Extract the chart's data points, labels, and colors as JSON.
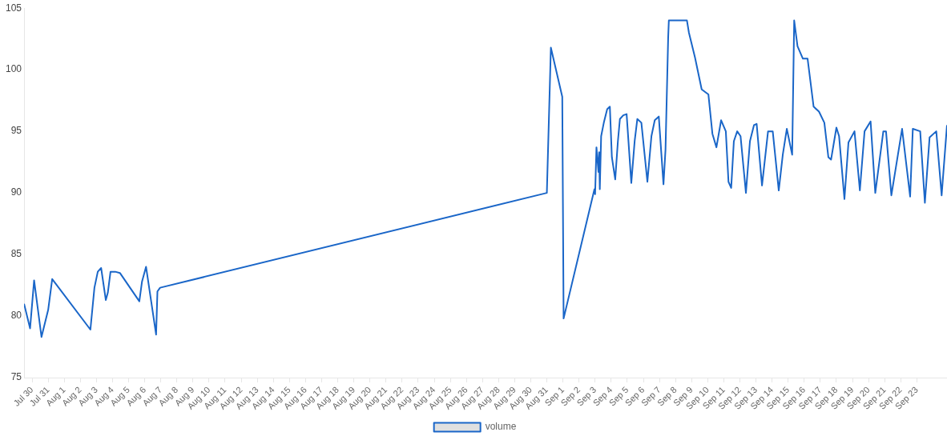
{
  "chart_data": {
    "type": "line",
    "legend": "bottom",
    "grid": false,
    "marker": "none",
    "line_style": "solid",
    "xlim": [
      "--07-29T12:00",
      "--09-24T21:00"
    ],
    "ylim": [
      75,
      105
    ],
    "yticks": [
      75,
      80,
      85,
      90,
      95,
      100,
      105
    ],
    "xticks": [
      {
        "value": "--07-30",
        "label": "Jul 30"
      },
      {
        "value": "--07-31",
        "label": "Jul 31"
      },
      {
        "value": "--08-01",
        "label": "Aug 1"
      },
      {
        "value": "--08-02",
        "label": "Aug 2"
      },
      {
        "value": "--08-03",
        "label": "Aug 3"
      },
      {
        "value": "--08-04",
        "label": "Aug 4"
      },
      {
        "value": "--08-05",
        "label": "Aug 5"
      },
      {
        "value": "--08-06",
        "label": "Aug 6"
      },
      {
        "value": "--08-07",
        "label": "Aug 7"
      },
      {
        "value": "--08-08",
        "label": "Aug 8"
      },
      {
        "value": "--08-09",
        "label": "Aug 9"
      },
      {
        "value": "--08-10",
        "label": "Aug 10"
      },
      {
        "value": "--08-11",
        "label": "Aug 11"
      },
      {
        "value": "--08-12",
        "label": "Aug 12"
      },
      {
        "value": "--08-13",
        "label": "Aug 13"
      },
      {
        "value": "--08-14",
        "label": "Aug 14"
      },
      {
        "value": "--08-15",
        "label": "Aug 15"
      },
      {
        "value": "--08-16",
        "label": "Aug 16"
      },
      {
        "value": "--08-17",
        "label": "Aug 17"
      },
      {
        "value": "--08-18",
        "label": "Aug 18"
      },
      {
        "value": "--08-19",
        "label": "Aug 19"
      },
      {
        "value": "--08-20",
        "label": "Aug 20"
      },
      {
        "value": "--08-21",
        "label": "Aug 21"
      },
      {
        "value": "--08-22",
        "label": "Aug 22"
      },
      {
        "value": "--08-23",
        "label": "Aug 23"
      },
      {
        "value": "--08-24",
        "label": "Aug 24"
      },
      {
        "value": "--08-25",
        "label": "Aug 25"
      },
      {
        "value": "--08-26",
        "label": "Aug 26"
      },
      {
        "value": "--08-27",
        "label": "Aug 27"
      },
      {
        "value": "--08-28",
        "label": "Aug 28"
      },
      {
        "value": "--08-29",
        "label": "Aug 29"
      },
      {
        "value": "--08-30",
        "label": "Aug 30"
      },
      {
        "value": "--08-31",
        "label": "Aug 31"
      },
      {
        "value": "--09-01",
        "label": "Sep 1"
      },
      {
        "value": "--09-02",
        "label": "Sep 2"
      },
      {
        "value": "--09-03",
        "label": "Sep 3"
      },
      {
        "value": "--09-04",
        "label": "Sep 4"
      },
      {
        "value": "--09-05",
        "label": "Sep 5"
      },
      {
        "value": "--09-06",
        "label": "Sep 6"
      },
      {
        "value": "--09-07",
        "label": "Sep 7"
      },
      {
        "value": "--09-08",
        "label": "Sep 8"
      },
      {
        "value": "--09-09",
        "label": "Sep 9"
      },
      {
        "value": "--09-10",
        "label": "Sep 10"
      },
      {
        "value": "--09-11",
        "label": "Sep 11"
      },
      {
        "value": "--09-12",
        "label": "Sep 12"
      },
      {
        "value": "--09-13",
        "label": "Sep 13"
      },
      {
        "value": "--09-14",
        "label": "Sep 14"
      },
      {
        "value": "--09-15",
        "label": "Sep 15"
      },
      {
        "value": "--09-16",
        "label": "Sep 16"
      },
      {
        "value": "--09-17",
        "label": "Sep 17"
      },
      {
        "value": "--09-18",
        "label": "Sep 18"
      },
      {
        "value": "--09-19",
        "label": "Sep 19"
      },
      {
        "value": "--09-20",
        "label": "Sep 20"
      },
      {
        "value": "--09-21",
        "label": "Sep 21"
      },
      {
        "value": "--09-22",
        "label": "Sep 22"
      },
      {
        "value": "--09-23",
        "label": "Sep 23"
      }
    ],
    "series": [
      {
        "name": "volume",
        "color": "#1a66c8",
        "x": [
          "--07-29T12:00",
          "--07-29T21:00",
          "--07-30T03:00",
          "--07-30T14:00",
          "--07-31T00:00",
          "--07-31T06:00",
          "--08-02T15:00",
          "--08-02T21:00",
          "--08-03T02:00",
          "--08-03T07:00",
          "--08-03T14:00",
          "--08-03T17:00",
          "--08-03T21:00",
          "--08-04T04:00",
          "--08-04T11:00",
          "--08-05T16:00",
          "--08-05T20:00",
          "--08-06T02:00",
          "--08-06T17:00",
          "--08-06T19:00",
          "--08-06T23:00",
          "--08-31T00:00",
          "--08-31T06:00",
          "--08-31T23:00",
          "--09-01T01:00",
          "--09-02T23:00",
          "--09-03T00:00",
          "--09-03T02:00",
          "--09-03T05:00",
          "--09-03T06:00",
          "--09-03T07:00",
          "--09-03T09:00",
          "--09-03T13:00",
          "--09-03T18:00",
          "--09-03T22:00",
          "--09-04T01:00",
          "--09-04T06:00",
          "--09-04T10:00",
          "--09-04T13:00",
          "--09-04T18:00",
          "--09-04T23:00",
          "--09-05T06:00",
          "--09-05T11:00",
          "--09-05T15:00",
          "--09-05T21:00",
          "--09-06T06:00",
          "--09-06T12:00",
          "--09-06T17:00",
          "--09-06T23:00",
          "--09-07T06:00",
          "--09-07T09:00",
          "--09-07T13:00",
          "--09-07T14:00",
          "--09-08T17:00",
          "--09-08T20:00",
          "--09-09T05:00",
          "--09-09T15:00",
          "--09-10T01:00",
          "--09-10T07:00",
          "--09-10T13:00",
          "--09-10T20:00",
          "--09-11T03:00",
          "--09-11T07:00",
          "--09-11T11:00",
          "--09-11T15:00",
          "--09-11T20:00",
          "--09-12T01:00",
          "--09-12T09:00",
          "--09-12T15:00",
          "--09-12T21:00",
          "--09-13T01:00",
          "--09-13T09:00",
          "--09-13T18:00",
          "--09-14T01:00",
          "--09-14T10:00",
          "--09-14T16:00",
          "--09-14T22:00",
          "--09-15T06:00",
          "--09-15T09:00",
          "--09-15T14:00",
          "--09-15T22:00",
          "--09-16T05:00",
          "--09-16T14:00",
          "--09-16T22:00",
          "--09-17T06:00",
          "--09-17T12:00",
          "--09-17T16:00",
          "--09-18T00:00",
          "--09-18T04:00",
          "--09-18T12:00",
          "--09-18T18:00",
          "--09-19T03:00",
          "--09-19T11:00",
          "--09-19T18:00",
          "--09-20T03:00",
          "--09-20T10:00",
          "--09-20T22:00",
          "--09-21T02:00",
          "--09-21T10:00",
          "--09-22T02:00",
          "--09-22T14:00",
          "--09-22T18:00",
          "--09-23T05:00",
          "--09-23T12:00",
          "--09-23T19:00",
          "--09-24T05:00",
          "--09-24T13:00",
          "--09-24T21:00"
        ],
        "values": [
          81.0,
          79.0,
          82.9,
          78.3,
          80.5,
          83.0,
          78.9,
          82.3,
          83.6,
          83.9,
          81.3,
          81.9,
          83.6,
          83.6,
          83.5,
          81.2,
          82.8,
          84.0,
          78.5,
          82.0,
          82.3,
          90.0,
          101.8,
          97.8,
          79.8,
          90.3,
          89.9,
          93.7,
          91.7,
          93.3,
          90.3,
          94.6,
          95.7,
          96.8,
          97.0,
          92.9,
          91.1,
          94.2,
          96.0,
          96.3,
          96.4,
          90.8,
          94.2,
          96.0,
          95.7,
          90.9,
          94.6,
          95.9,
          96.2,
          90.7,
          93.5,
          102.6,
          104.0,
          104.0,
          103.0,
          101.0,
          98.4,
          98.0,
          94.8,
          93.7,
          95.9,
          95.0,
          90.9,
          90.4,
          94.2,
          95.0,
          94.6,
          90.0,
          94.2,
          95.5,
          95.6,
          90.6,
          95.0,
          95.0,
          90.2,
          93.1,
          95.2,
          93.1,
          104.0,
          101.9,
          100.9,
          100.9,
          97.0,
          96.6,
          95.7,
          92.9,
          92.7,
          95.3,
          94.6,
          89.5,
          94.1,
          95.0,
          90.2,
          95.0,
          95.8,
          90.0,
          95.0,
          95.0,
          89.8,
          95.2,
          89.7,
          95.2,
          95.0,
          89.2,
          94.5,
          95.0,
          89.8,
          95.5
        ]
      }
    ]
  }
}
